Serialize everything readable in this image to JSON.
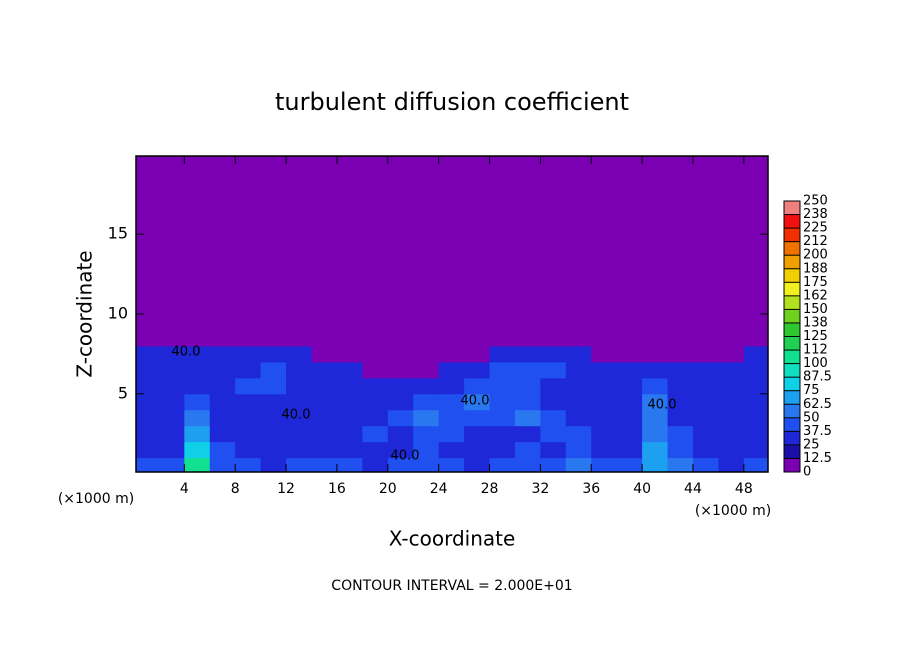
{
  "chart_data": {
    "type": "heatmap",
    "title": "turbulent diffusion coefficient",
    "x_label": "X-coordinate",
    "y_label": "Z-coordinate",
    "x_unit_label": "(×1000 m)",
    "footer": "CONTOUR INTERVAL = 2.000E+01",
    "contour_labels": [
      "40.0",
      "40.0",
      "40.0",
      "40.0",
      "40.0"
    ],
    "xlim": [
      0.2,
      49.9
    ],
    "ylim": [
      0.1,
      19.9
    ],
    "xticks": [
      4,
      8,
      12,
      16,
      20,
      24,
      28,
      32,
      36,
      40,
      44,
      48
    ],
    "yticks": [
      5,
      10,
      15
    ],
    "x": [
      1,
      3,
      5,
      7,
      9,
      11,
      13,
      15,
      17,
      19,
      21,
      23,
      25,
      27,
      29,
      31,
      33,
      35,
      37,
      39,
      41,
      43,
      45,
      47,
      49
    ],
    "z": [
      0.5,
      1.5,
      2.5,
      3.5,
      4.5,
      5.5,
      6.5,
      7.5,
      8.5
    ],
    "values": [
      [
        40,
        45,
        100,
        45,
        40,
        35,
        40,
        45,
        40,
        35,
        40,
        45,
        40,
        35,
        40,
        45,
        40,
        50,
        45,
        40,
        70,
        50,
        40,
        35,
        40
      ],
      [
        35,
        30,
        80,
        40,
        35,
        30,
        30,
        35,
        30,
        30,
        35,
        40,
        35,
        30,
        35,
        40,
        35,
        40,
        35,
        35,
        65,
        45,
        35,
        30,
        35
      ],
      [
        30,
        30,
        70,
        35,
        30,
        30,
        25,
        30,
        35,
        40,
        35,
        45,
        40,
        35,
        35,
        35,
        45,
        40,
        30,
        30,
        60,
        40,
        30,
        30,
        30
      ],
      [
        25,
        30,
        55,
        30,
        35,
        30,
        25,
        25,
        30,
        35,
        45,
        50,
        45,
        40,
        40,
        50,
        40,
        35,
        30,
        30,
        55,
        35,
        30,
        25,
        30
      ],
      [
        30,
        25,
        45,
        30,
        30,
        35,
        30,
        25,
        25,
        30,
        35,
        40,
        45,
        50,
        45,
        40,
        35,
        30,
        30,
        25,
        50,
        30,
        25,
        30,
        30
      ],
      [
        30,
        30,
        35,
        35,
        40,
        40,
        35,
        30,
        25,
        25,
        30,
        30,
        35,
        40,
        45,
        40,
        35,
        30,
        25,
        25,
        45,
        30,
        30,
        30,
        35
      ],
      [
        35,
        30,
        30,
        30,
        35,
        40,
        35,
        30,
        25,
        0,
        0,
        0,
        30,
        35,
        40,
        45,
        40,
        35,
        30,
        30,
        35,
        30,
        30,
        35,
        30
      ],
      [
        30,
        25,
        25,
        30,
        30,
        35,
        30,
        0,
        0,
        0,
        0,
        0,
        0,
        0,
        25,
        30,
        25,
        25,
        0,
        0,
        0,
        0,
        0,
        0,
        25
      ],
      [
        0,
        0,
        0,
        0,
        0,
        0,
        0,
        0,
        0,
        0,
        0,
        0,
        0,
        0,
        0,
        0,
        0,
        0,
        0,
        0,
        0,
        0,
        0,
        0,
        0
      ]
    ],
    "clim": [
      0,
      250
    ],
    "colors": [
      "#7b00b4",
      "#1a10a8",
      "#1e28d8",
      "#2050f0",
      "#2a78f0",
      "#1ea0f0",
      "#10d0e8",
      "#10e0c0",
      "#10e090",
      "#20d050",
      "#30c830",
      "#70d020",
      "#b0e020",
      "#f0f020",
      "#f0d000",
      "#f0a000",
      "#f07000",
      "#f03000",
      "#f01010",
      "#f08080"
    ],
    "cticks": [
      0,
      12.5,
      25,
      37.5,
      50,
      62.5,
      75,
      87.5,
      100,
      {
        "value": 112.5,
        "label": "112"
      },
      125,
      {
        "value": 137.5,
        "label": "138"
      },
      150,
      {
        "value": 162.5,
        "label": "162"
      },
      175,
      {
        "value": 187.5,
        "label": "188"
      },
      200,
      {
        "value": 212.5,
        "label": "212"
      },
      225,
      {
        "value": 237.5,
        "label": "238"
      },
      250
    ]
  }
}
